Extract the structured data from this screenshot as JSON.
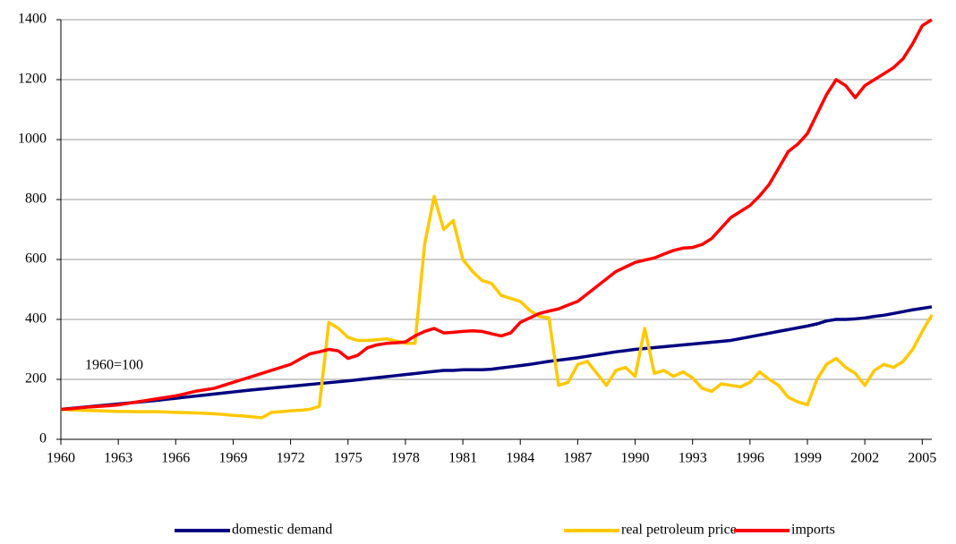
{
  "chart_data": {
    "type": "line",
    "annotation": "1960=100",
    "x": [
      1960,
      1960.5,
      1961,
      1961.5,
      1962,
      1962.5,
      1963,
      1963.5,
      1964,
      1964.5,
      1965,
      1965.5,
      1966,
      1966.5,
      1967,
      1967.5,
      1968,
      1968.5,
      1969,
      1969.5,
      1970,
      1970.5,
      1971,
      1971.5,
      1972,
      1972.5,
      1973,
      1973.5,
      1974,
      1974.5,
      1975,
      1975.5,
      1976,
      1976.5,
      1977,
      1977.5,
      1978,
      1978.5,
      1979,
      1979.5,
      1980,
      1980.5,
      1981,
      1981.5,
      1982,
      1982.5,
      1983,
      1983.5,
      1984,
      1984.5,
      1985,
      1985.5,
      1986,
      1986.5,
      1987,
      1987.5,
      1988,
      1988.5,
      1989,
      1989.5,
      1990,
      1990.5,
      1991,
      1991.5,
      1992,
      1992.5,
      1993,
      1993.5,
      1994,
      1994.5,
      1995,
      1995.5,
      1996,
      1996.5,
      1997,
      1997.5,
      1998,
      1998.5,
      1999,
      1999.5,
      2000,
      2000.5,
      2001,
      2001.5,
      2002,
      2002.5,
      2003,
      2003.5,
      2004,
      2004.5,
      2005,
      2005.5
    ],
    "series": [
      {
        "name": "domestic demand",
        "color": "#000080",
        "values": [
          100,
          103,
          106,
          109,
          112,
          115,
          118,
          121,
          124,
          127,
          130,
          133.5,
          137,
          140.5,
          144,
          147.5,
          151,
          154.5,
          158,
          161.5,
          165,
          168,
          171,
          174,
          177,
          180,
          183,
          186,
          189,
          192,
          195,
          198.5,
          202,
          205.5,
          209,
          212.5,
          216,
          219.5,
          223,
          226.5,
          230,
          230,
          232,
          232,
          232,
          234,
          238,
          242,
          246,
          250,
          255,
          260,
          264,
          268,
          272,
          277,
          282,
          287,
          292,
          296,
          300,
          303,
          306,
          309,
          312,
          315,
          318,
          321,
          324,
          327,
          330,
          336,
          342,
          348,
          354,
          360,
          366,
          372,
          378,
          385,
          395,
          400,
          400,
          402,
          405,
          410,
          414,
          420,
          426,
          432,
          437,
          442
        ]
      },
      {
        "name": "real petroleum price",
        "color": "#ffc800",
        "values": [
          100,
          98,
          97,
          96,
          95,
          94,
          93,
          93,
          92,
          92,
          92,
          91,
          90,
          89,
          88,
          87,
          85,
          83,
          80,
          78,
          75,
          72,
          90,
          92,
          95,
          97,
          100,
          110,
          390,
          370,
          340,
          330,
          330,
          332,
          335,
          328,
          320,
          320,
          650,
          810,
          700,
          730,
          600,
          560,
          530,
          520,
          480,
          470,
          460,
          430,
          410,
          405,
          180,
          190,
          250,
          260,
          220,
          180,
          230,
          240,
          210,
          370,
          220,
          230,
          210,
          225,
          205,
          170,
          160,
          185,
          180,
          175,
          190,
          225,
          200,
          180,
          140,
          125,
          115,
          200,
          250,
          270,
          240,
          220,
          180,
          230,
          250,
          240,
          260,
          300,
          360,
          415
        ]
      },
      {
        "name": "imports",
        "color": "#ff0000",
        "values": [
          100,
          102,
          105,
          108,
          110,
          112,
          115,
          120,
          125,
          130,
          135,
          140,
          145,
          152,
          160,
          165,
          170,
          180,
          190,
          200,
          210,
          220,
          230,
          240,
          250,
          268,
          285,
          292,
          300,
          295,
          270,
          280,
          305,
          315,
          320,
          322,
          325,
          345,
          360,
          370,
          355,
          357,
          360,
          362,
          360,
          352,
          345,
          355,
          390,
          405,
          420,
          428,
          435,
          448,
          460,
          485,
          510,
          535,
          560,
          575,
          590,
          598,
          605,
          618,
          630,
          638,
          640,
          650,
          670,
          705,
          740,
          760,
          780,
          812,
          850,
          905,
          960,
          985,
          1020,
          1085,
          1150,
          1200,
          1180,
          1140,
          1180,
          1200,
          1220,
          1240,
          1270,
          1320,
          1380,
          1400
        ]
      }
    ],
    "xlim": [
      1960,
      2005.5
    ],
    "xticks": [
      1960,
      1963,
      1966,
      1969,
      1972,
      1975,
      1978,
      1981,
      1984,
      1987,
      1990,
      1993,
      1996,
      1999,
      2002,
      2005
    ],
    "ylim": [
      0,
      1400
    ],
    "yticks": [
      0,
      200,
      400,
      600,
      800,
      1000,
      1200,
      1400
    ],
    "grid": true,
    "legend": "bottom"
  }
}
